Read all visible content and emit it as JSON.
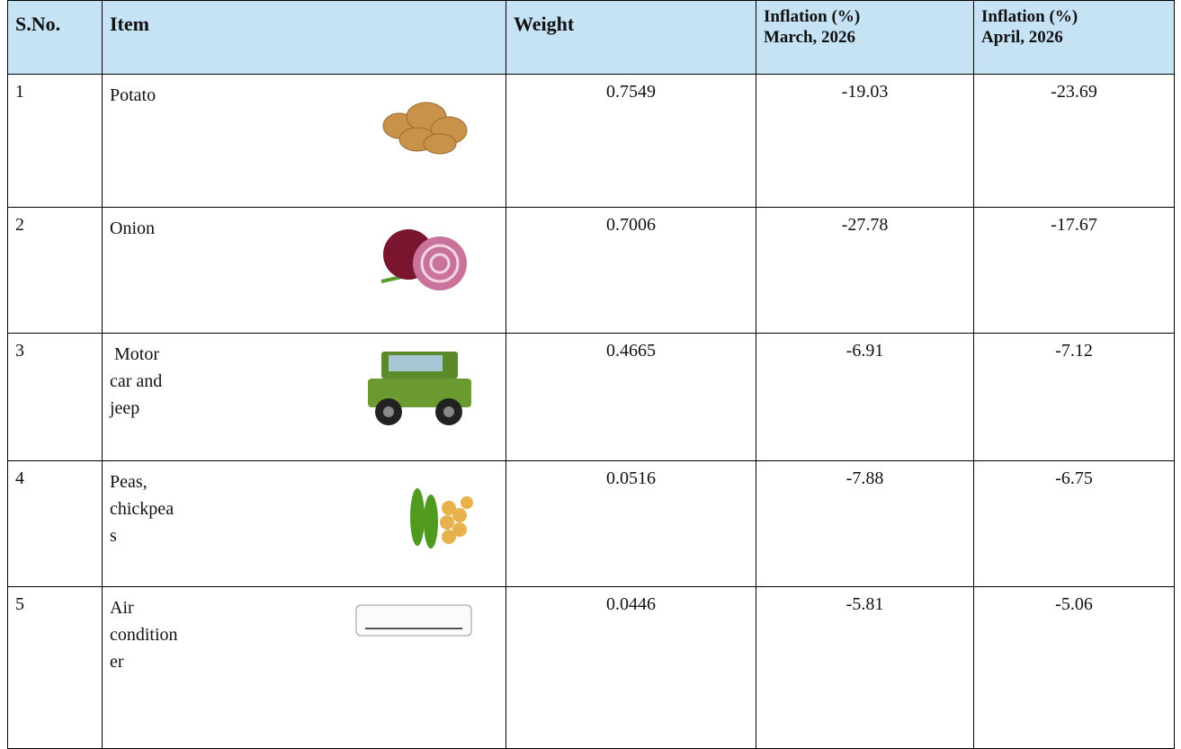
{
  "table": {
    "header": [
      "S.No.",
      "Item",
      "Weight",
      "Inflation (%)\nMarch, 2026",
      "Inflation (%)\nApril, 2026"
    ],
    "rows": [
      [
        "1",
        "Potato",
        "0.7549",
        "-19.03",
        "-23.69"
      ],
      [
        "2",
        "Onion",
        "0.7006",
        "-27.78",
        "-17.67"
      ],
      [
        "3",
        " Motor car and jeep",
        "0.4665",
        "-6.91",
        "-7.12"
      ],
      [
        "4",
        "Peas, chickpeas",
        "0.0516",
        "-7.88",
        "-6.75"
      ],
      [
        "5",
        "Air conditioner",
        "0.0446",
        "-5.81",
        "-5.06"
      ]
    ]
  }
}
